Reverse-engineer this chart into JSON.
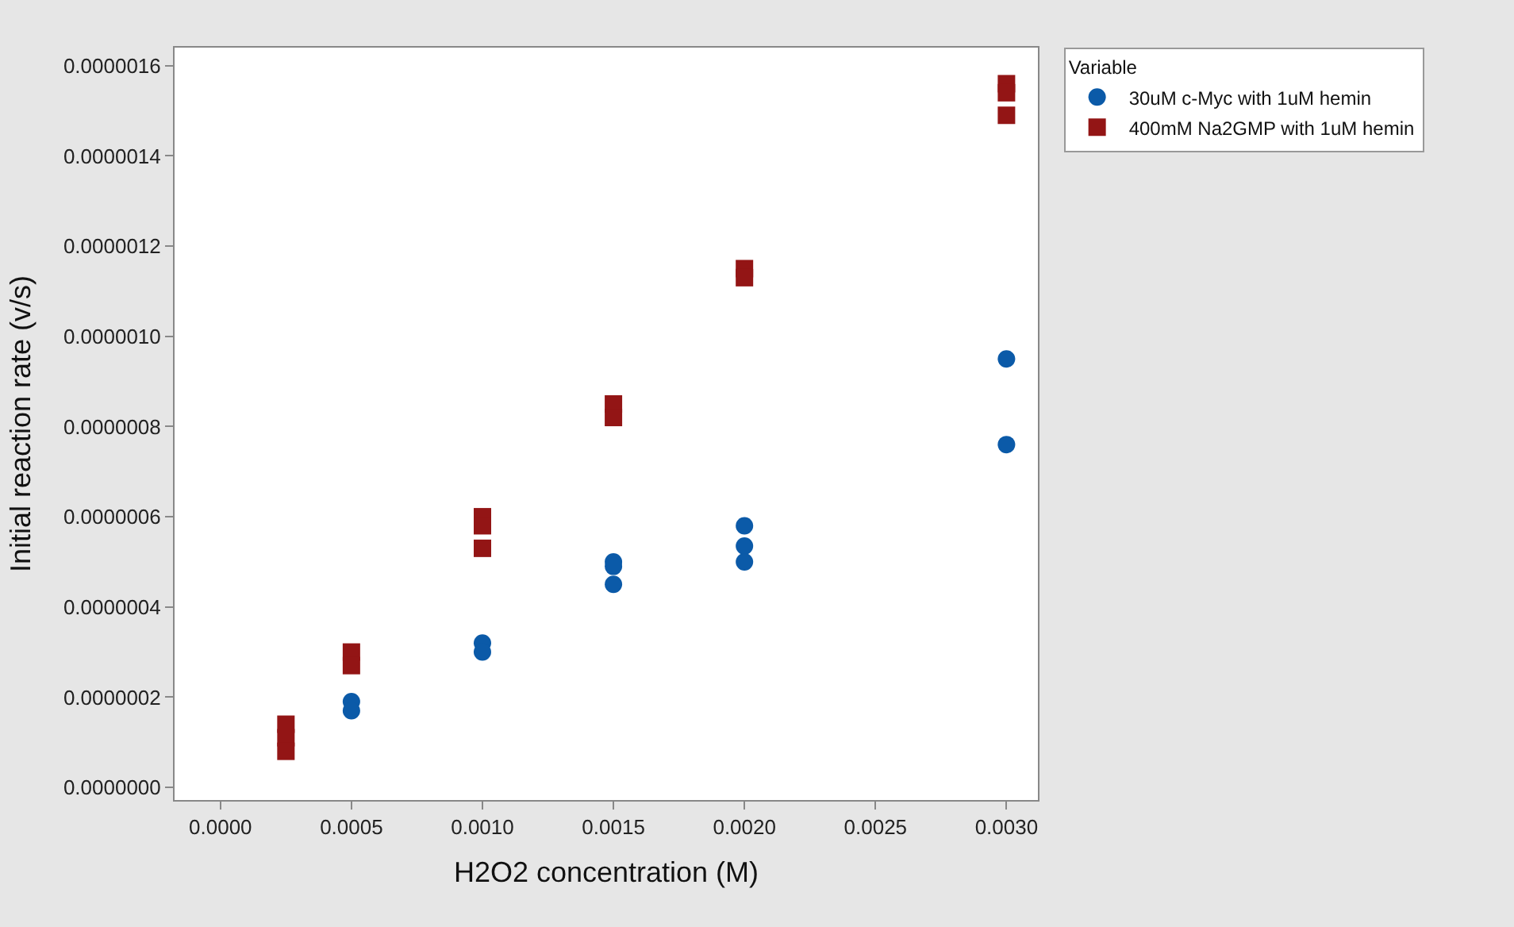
{
  "chart_data": {
    "type": "scatter",
    "xlabel": "H2O2 concentration (M)",
    "ylabel": "Initial reaction rate (v/s)",
    "legend_title": "Variable",
    "legend": "top right",
    "xlim": [
      -0.000175,
      0.00312
    ],
    "xticks": [
      {
        "value": 0,
        "label": "0.0000"
      },
      {
        "value": 0.0005,
        "label": "0.0005"
      },
      {
        "value": 0.001,
        "label": "0.0010"
      },
      {
        "value": 0.0015,
        "label": "0.0015"
      },
      {
        "value": 0.002,
        "label": "0.0020"
      },
      {
        "value": 0.0025,
        "label": "0.0025"
      },
      {
        "value": 0.003,
        "label": "0.0030"
      }
    ],
    "ylim": [
      -2.8e-08,
      1.64e-06
    ],
    "yticks": [
      {
        "value": 0,
        "label": "0.0000000"
      },
      {
        "value": 2e-07,
        "label": "0.0000002"
      },
      {
        "value": 4e-07,
        "label": "0.0000004"
      },
      {
        "value": 6e-07,
        "label": "0.0000006"
      },
      {
        "value": 8e-07,
        "label": "0.0000008"
      },
      {
        "value": 1e-06,
        "label": "0.0000010"
      },
      {
        "value": 1.2e-06,
        "label": "0.0000012"
      },
      {
        "value": 1.4e-06,
        "label": "0.0000014"
      },
      {
        "value": 1.6e-06,
        "label": "0.0000016"
      }
    ],
    "series": [
      {
        "name": "30uM c-Myc with 1uM hemin",
        "color": "#0b5aa8",
        "marker": "circle",
        "x": [
          0.0005,
          0.0005,
          0.001,
          0.001,
          0.0015,
          0.0015,
          0.0015,
          0.002,
          0.002,
          0.002,
          0.003,
          0.003
        ],
        "values": [
          1.9e-07,
          1.7e-07,
          3.2e-07,
          3e-07,
          5e-07,
          4.9e-07,
          4.5e-07,
          5.8e-07,
          5.35e-07,
          5e-07,
          9.5e-07,
          7.6e-07
        ]
      },
      {
        "name": "400mM Na2GMP with 1uM hemin",
        "color": "#931515",
        "marker": "square",
        "x": [
          0.00025,
          0.00025,
          0.00025,
          0.0005,
          0.0005,
          0.001,
          0.001,
          0.001,
          0.0015,
          0.0015,
          0.002,
          0.002,
          0.003,
          0.003,
          0.003
        ],
        "values": [
          1.4e-07,
          1.1e-07,
          8e-08,
          3e-07,
          2.7e-07,
          6e-07,
          5.8e-07,
          5.3e-07,
          8.5e-07,
          8.2e-07,
          1.15e-06,
          1.13e-06,
          1.56e-06,
          1.54e-06,
          1.49e-06
        ]
      }
    ]
  }
}
